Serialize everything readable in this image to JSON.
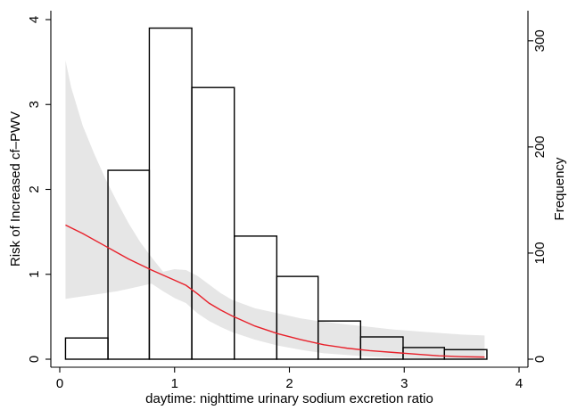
{
  "chart_data": {
    "type": "bar",
    "xlabel": "daytime: nighttime urinary sodium excretion ratio",
    "ylabel_left": "Risk of Increased cf–PWV",
    "ylabel_right": "Frequency",
    "xlim": [
      0,
      4
    ],
    "ylim_left": [
      0,
      4
    ],
    "ylim_right": [
      0,
      320
    ],
    "x_ticks": [
      {
        "value": 0,
        "label": "0"
      },
      {
        "value": 1,
        "label": "1"
      },
      {
        "value": 2,
        "label": "2"
      },
      {
        "value": 3,
        "label": "3"
      },
      {
        "value": 4,
        "label": "4"
      }
    ],
    "y_left_ticks": [
      {
        "value": 0,
        "label": "0"
      },
      {
        "value": 1,
        "label": "1"
      },
      {
        "value": 2,
        "label": "2"
      },
      {
        "value": 3,
        "label": "3"
      },
      {
        "value": 4,
        "label": "4"
      }
    ],
    "y_right_ticks": [
      {
        "value": 0,
        "label": "0"
      },
      {
        "value": 100,
        "label": "100"
      },
      {
        "value": 200,
        "label": "200"
      },
      {
        "value": 300,
        "label": "300"
      }
    ],
    "histogram": {
      "axis": "right",
      "bins": [
        {
          "x0": 0.05,
          "x1": 0.42,
          "count": 20
        },
        {
          "x0": 0.42,
          "x1": 0.78,
          "count": 178
        },
        {
          "x0": 0.78,
          "x1": 1.15,
          "count": 312
        },
        {
          "x0": 1.15,
          "x1": 1.52,
          "count": 256
        },
        {
          "x0": 1.52,
          "x1": 1.89,
          "count": 116
        },
        {
          "x0": 1.89,
          "x1": 2.25,
          "count": 78
        },
        {
          "x0": 2.25,
          "x1": 2.62,
          "count": 36
        },
        {
          "x0": 2.62,
          "x1": 2.99,
          "count": 21
        },
        {
          "x0": 2.99,
          "x1": 3.35,
          "count": 11
        },
        {
          "x0": 3.35,
          "x1": 3.72,
          "count": 9
        }
      ]
    },
    "risk_curve": {
      "axis": "left",
      "color": "#e8202a",
      "points": [
        {
          "x": 0.05,
          "y": 1.58
        },
        {
          "x": 0.2,
          "y": 1.48
        },
        {
          "x": 0.4,
          "y": 1.33
        },
        {
          "x": 0.6,
          "y": 1.18
        },
        {
          "x": 0.8,
          "y": 1.05
        },
        {
          "x": 1.0,
          "y": 0.93
        },
        {
          "x": 1.1,
          "y": 0.87
        },
        {
          "x": 1.2,
          "y": 0.77
        },
        {
          "x": 1.3,
          "y": 0.66
        },
        {
          "x": 1.4,
          "y": 0.58
        },
        {
          "x": 1.5,
          "y": 0.51
        },
        {
          "x": 1.7,
          "y": 0.39
        },
        {
          "x": 1.9,
          "y": 0.3
        },
        {
          "x": 2.1,
          "y": 0.23
        },
        {
          "x": 2.3,
          "y": 0.17
        },
        {
          "x": 2.5,
          "y": 0.13
        },
        {
          "x": 2.7,
          "y": 0.1
        },
        {
          "x": 2.9,
          "y": 0.08
        },
        {
          "x": 3.1,
          "y": 0.06
        },
        {
          "x": 3.3,
          "y": 0.04
        },
        {
          "x": 3.5,
          "y": 0.03
        },
        {
          "x": 3.7,
          "y": 0.025
        }
      ]
    },
    "confidence_band": {
      "axis": "left",
      "color": "#e6e6e6",
      "points": [
        {
          "x": 0.05,
          "lower": 0.71,
          "upper": 3.52
        },
        {
          "x": 0.1,
          "lower": 0.72,
          "upper": 3.2
        },
        {
          "x": 0.2,
          "lower": 0.74,
          "upper": 2.75
        },
        {
          "x": 0.3,
          "lower": 0.76,
          "upper": 2.42
        },
        {
          "x": 0.4,
          "lower": 0.78,
          "upper": 2.12
        },
        {
          "x": 0.5,
          "lower": 0.8,
          "upper": 1.85
        },
        {
          "x": 0.6,
          "lower": 0.83,
          "upper": 1.6
        },
        {
          "x": 0.7,
          "lower": 0.86,
          "upper": 1.38
        },
        {
          "x": 0.8,
          "lower": 0.89,
          "upper": 1.2
        },
        {
          "x": 0.9,
          "lower": 0.8,
          "upper": 1.03
        },
        {
          "x": 1.0,
          "lower": 0.72,
          "upper": 1.06
        },
        {
          "x": 1.1,
          "lower": 0.66,
          "upper": 1.05
        },
        {
          "x": 1.2,
          "lower": 0.54,
          "upper": 0.98
        },
        {
          "x": 1.3,
          "lower": 0.45,
          "upper": 0.88
        },
        {
          "x": 1.4,
          "lower": 0.38,
          "upper": 0.78
        },
        {
          "x": 1.5,
          "lower": 0.32,
          "upper": 0.7
        },
        {
          "x": 1.7,
          "lower": 0.23,
          "upper": 0.6
        },
        {
          "x": 1.9,
          "lower": 0.16,
          "upper": 0.54
        },
        {
          "x": 2.1,
          "lower": 0.11,
          "upper": 0.48
        },
        {
          "x": 2.3,
          "lower": 0.07,
          "upper": 0.44
        },
        {
          "x": 2.5,
          "lower": 0.05,
          "upper": 0.41
        },
        {
          "x": 2.7,
          "lower": 0.03,
          "upper": 0.38
        },
        {
          "x": 2.9,
          "lower": 0.02,
          "upper": 0.35
        },
        {
          "x": 3.1,
          "lower": 0.01,
          "upper": 0.33
        },
        {
          "x": 3.3,
          "lower": 0.005,
          "upper": 0.31
        },
        {
          "x": 3.5,
          "lower": 0.003,
          "upper": 0.29
        },
        {
          "x": 3.7,
          "lower": 0.002,
          "upper": 0.28
        }
      ]
    },
    "grid": false,
    "legend": "none"
  }
}
